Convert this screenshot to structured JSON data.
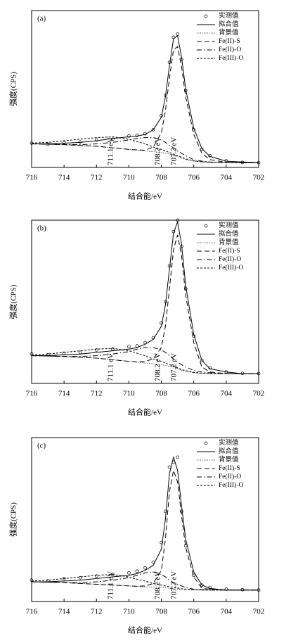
{
  "chart_data": [
    {
      "type": "line",
      "panel_label": "(a)",
      "x_label": "结合能/eV",
      "y_label": "强度(CPS)",
      "x": [
        716,
        715,
        714,
        713,
        712,
        711,
        710,
        709.5,
        709,
        708.5,
        708,
        707.75,
        707.5,
        707.25,
        707,
        706.75,
        706.5,
        706,
        705.5,
        705,
        704,
        703,
        702
      ],
      "xlim": [
        716,
        702
      ],
      "xticks": [
        716,
        714,
        712,
        710,
        708,
        706,
        704,
        702
      ],
      "ylim": [
        0,
        100
      ],
      "legend": "upper right",
      "annotations": [
        {
          "text": "711.1 eV",
          "x": 711.1
        },
        {
          "text": "708.2 eV",
          "x": 708.2
        },
        {
          "text": "707.2 eV",
          "x": 707.2
        }
      ],
      "series": [
        {
          "name": "实测值",
          "color": "#000000",
          "style": "marker",
          "values": [
            15.5,
            14.8,
            15.8,
            16.2,
            17.5,
            18,
            20,
            20.5,
            21.5,
            24,
            33,
            46,
            67,
            83,
            85,
            69,
            49,
            24,
            11.5,
            7.5,
            4.2,
            3.2,
            3
          ]
        },
        {
          "name": "拟合值",
          "color": "#000000",
          "style": "solid",
          "values": [
            15,
            15,
            15.5,
            16,
            17,
            18.5,
            19.5,
            20,
            21,
            24,
            32,
            45,
            65,
            82,
            84,
            70,
            50,
            25,
            12,
            7,
            4,
            3.5,
            3
          ]
        },
        {
          "name": "背景值",
          "color": "#000000",
          "style": "dotted",
          "values": [
            15,
            14.8,
            14.5,
            14,
            13.5,
            12.5,
            11.5,
            11,
            10.5,
            10,
            9.5,
            9,
            8.5,
            8,
            7,
            6,
            5,
            4,
            3.5,
            3.2,
            3,
            3,
            3
          ]
        },
        {
          "name": "Fe(II)-S",
          "color": "#000000",
          "style": "dash",
          "values": [
            15,
            14.8,
            14.5,
            14,
            13.5,
            12.5,
            11.5,
            11.2,
            11,
            13,
            22,
            36,
            57,
            75,
            77,
            64,
            45,
            21,
            9,
            5,
            3.2,
            3,
            3
          ]
        },
        {
          "name": "Fe(II)-O",
          "color": "#000000",
          "style": "dashdot",
          "values": [
            15,
            14.8,
            14.6,
            14.5,
            15,
            16,
            17.5,
            18.5,
            19,
            19,
            17.5,
            16,
            14,
            12.5,
            10.5,
            9,
            7.5,
            5,
            4,
            3.5,
            3,
            3,
            3
          ]
        },
        {
          "name": "Fe(III)-O",
          "color": "#000000",
          "style": "shortdash",
          "values": [
            15.5,
            16,
            17,
            18,
            19,
            19.5,
            18,
            16.5,
            15,
            13,
            11.5,
            10.5,
            9.5,
            8.5,
            7.5,
            6.5,
            5.5,
            4.2,
            3.6,
            3.3,
            3,
            3,
            3
          ]
        }
      ]
    },
    {
      "type": "line",
      "panel_label": "(b)",
      "x_label": "结合能/eV",
      "y_label": "强度(CPS)",
      "x": [
        716,
        715,
        714,
        713,
        712,
        711,
        710,
        709.5,
        709,
        708.5,
        708,
        707.75,
        707.5,
        707.25,
        707,
        706.75,
        706.5,
        706,
        705.5,
        705,
        704,
        703,
        702
      ],
      "xlim": [
        716,
        702
      ],
      "xticks": [
        716,
        714,
        712,
        710,
        708,
        706,
        704,
        702
      ],
      "ylim": [
        0,
        100
      ],
      "legend": "upper right",
      "annotations": [
        {
          "text": "711.1 eV",
          "x": 711.1
        },
        {
          "text": "708.2 eV",
          "x": 708.2
        },
        {
          "text": "707.2 eV",
          "x": 707.2
        }
      ],
      "series": [
        {
          "name": "实测值",
          "color": "#000000",
          "style": "marker",
          "values": [
            18,
            17.5,
            18.5,
            19,
            20.5,
            21,
            22.5,
            23,
            25,
            28,
            37,
            50,
            72,
            93,
            100,
            84,
            58,
            29,
            14,
            9.5,
            7,
            6.2,
            6
          ]
        },
        {
          "name": "拟合值",
          "color": "#000000",
          "style": "solid",
          "values": [
            17,
            17,
            17.5,
            18,
            19,
            20,
            21,
            22,
            24,
            27,
            35,
            48,
            70,
            92,
            99,
            85,
            60,
            30,
            14,
            9,
            7,
            6,
            6
          ]
        },
        {
          "name": "背景值",
          "color": "#000000",
          "style": "dotted",
          "values": [
            17,
            16.8,
            16.5,
            16,
            15.5,
            14.5,
            13.5,
            13,
            12.5,
            12,
            11.5,
            11,
            10.5,
            10,
            9,
            8,
            7.5,
            6.5,
            6.2,
            6,
            6,
            6,
            6
          ]
        },
        {
          "name": "Fe(II)-S",
          "color": "#000000",
          "style": "dash",
          "values": [
            17,
            16.8,
            16.5,
            16,
            15.5,
            14.5,
            13.5,
            13.2,
            13.5,
            15,
            22,
            35,
            58,
            82,
            91,
            78,
            54,
            25,
            10,
            7,
            6,
            6,
            6
          ]
        },
        {
          "name": "Fe(II)-O",
          "color": "#000000",
          "style": "dashdot",
          "values": [
            17,
            16.8,
            16.6,
            16.5,
            17,
            18,
            19.5,
            21,
            22,
            22,
            20.5,
            19,
            17,
            15,
            13,
            11.5,
            10,
            8,
            7,
            6.5,
            6,
            6,
            6
          ]
        },
        {
          "name": "Fe(III)-O",
          "color": "#000000",
          "style": "shortdash",
          "values": [
            17.5,
            18,
            19,
            20,
            21,
            21.5,
            20,
            18.5,
            17,
            15,
            13.5,
            12.5,
            11.5,
            10.5,
            9.5,
            8.5,
            7.8,
            6.8,
            6.3,
            6,
            6,
            6,
            6
          ]
        }
      ]
    },
    {
      "type": "line",
      "panel_label": "(c)",
      "x_label": "结合能/eV",
      "y_label": "强度(CPS)",
      "x": [
        716,
        715,
        714,
        713,
        712,
        711,
        710,
        709.5,
        709,
        708.5,
        708,
        707.75,
        707.5,
        707.25,
        707,
        706.75,
        706.5,
        706,
        705.5,
        705,
        704,
        703,
        702
      ],
      "xlim": [
        716,
        702
      ],
      "xticks": [
        716,
        714,
        712,
        710,
        708,
        706,
        704,
        702
      ],
      "ylim": [
        0,
        100
      ],
      "legend": "upper right",
      "annotations": [
        {
          "text": "711.1 eV",
          "x": 711.1
        },
        {
          "text": "708.2 eV",
          "x": 708.2
        },
        {
          "text": "707.2 eV",
          "x": 707.2
        }
      ],
      "series": [
        {
          "name": "实测值",
          "color": "#000000",
          "style": "marker",
          "values": [
            13,
            12.5,
            14,
            14.5,
            15.5,
            16.5,
            17.5,
            18.5,
            20.5,
            24,
            36,
            55,
            82,
            85,
            88,
            55,
            34,
            16,
            10,
            8.5,
            7.5,
            7.2,
            7
          ]
        },
        {
          "name": "拟合值",
          "color": "#000000",
          "style": "solid",
          "values": [
            12,
            12,
            12.5,
            13,
            14,
            15,
            16,
            17,
            19,
            22,
            32,
            50,
            78,
            88,
            80,
            58,
            38,
            18,
            10,
            8,
            7,
            7,
            7
          ]
        },
        {
          "name": "背景值",
          "color": "#000000",
          "style": "dotted",
          "values": [
            12,
            11.8,
            11.5,
            11,
            10.5,
            10,
            9.5,
            9.2,
            9,
            8.8,
            8.5,
            8.3,
            8,
            7.8,
            7.6,
            7.4,
            7.2,
            7,
            7,
            7,
            7,
            7,
            7
          ]
        },
        {
          "name": "Fe(II)-S",
          "color": "#000000",
          "style": "dash",
          "values": [
            12,
            11.8,
            11.5,
            11,
            10.5,
            10,
            9.5,
            9.3,
            9.5,
            11,
            19,
            38,
            67,
            80,
            73,
            52,
            33,
            15,
            8,
            7.5,
            7,
            7,
            7
          ]
        },
        {
          "name": "Fe(II)-O",
          "color": "#000000",
          "style": "dashdot",
          "values": [
            12,
            11.8,
            11.6,
            11.5,
            12,
            13,
            14.5,
            16,
            17.5,
            18,
            16.5,
            15,
            13,
            11.5,
            10.5,
            9.5,
            8.5,
            7.5,
            7.2,
            7,
            7,
            7,
            7
          ]
        },
        {
          "name": "Fe(III)-O",
          "color": "#000000",
          "style": "shortdash",
          "values": [
            12.5,
            13,
            14,
            15,
            16,
            16.5,
            15,
            13.5,
            12.5,
            11,
            10,
            9.5,
            9,
            8.5,
            8.2,
            7.8,
            7.5,
            7.2,
            7,
            7,
            7,
            7,
            7
          ]
        }
      ]
    }
  ]
}
